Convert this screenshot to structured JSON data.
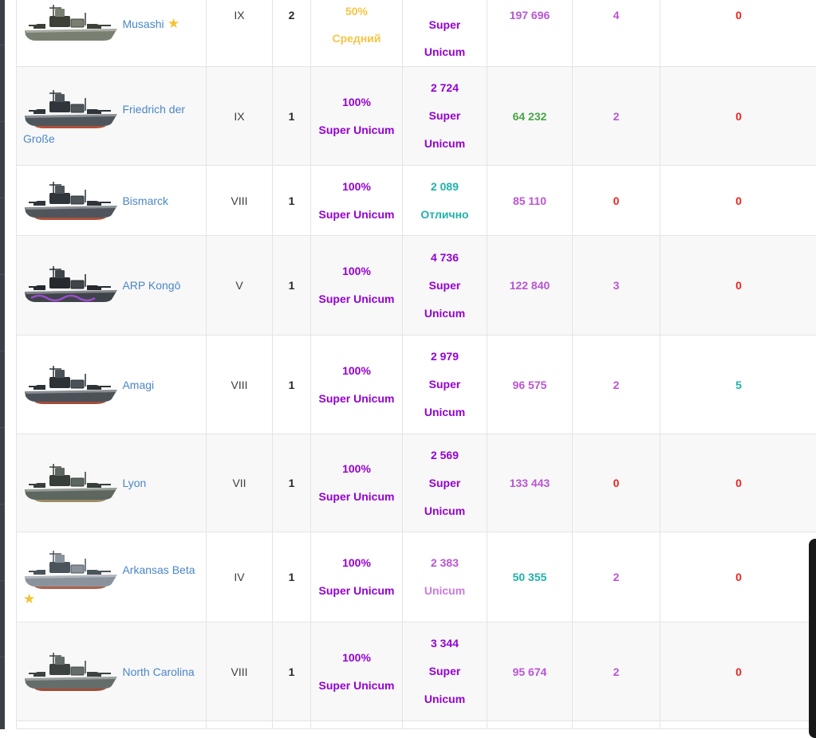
{
  "palette": {
    "purple": "#9400D3",
    "orchid": "#BA55D3",
    "orchidLight": "#C97AE0",
    "green": "#46A546",
    "teal": "#20B2AA",
    "amber": "#F5C544",
    "red": "#EE2222",
    "link": "#4A86C8",
    "gold": "#F2C233",
    "edgeDark": "#3A4046",
    "scrollThumb": "#17181A"
  },
  "icons": {
    "star": "★"
  },
  "table": {
    "rows": [
      {
        "ship": {
          "name": "Musashi",
          "has_star": true,
          "icon_colors": {
            "hull": "#7a8071",
            "dark": "#3c4138",
            "bottom": null,
            "accent": null
          }
        },
        "tier": "IX",
        "battles": "2",
        "winrate": {
          "value": "50%",
          "label": "Средний",
          "color": "amber"
        },
        "rating": {
          "value": "",
          "label_lines": [
            "Super",
            "Unicum"
          ],
          "color": "purple"
        },
        "avg_damage": {
          "value": "197 696",
          "color": "orchid"
        },
        "frags": {
          "value": "4",
          "color": "orchid"
        },
        "planes": {
          "value": "0",
          "color": "red"
        }
      },
      {
        "ship": {
          "name": "Friedrich der Große",
          "has_star": false,
          "icon_colors": {
            "hull": "#4e565c",
            "dark": "#2f353b",
            "bottom": "#b0503a",
            "accent": null
          }
        },
        "tier": "IX",
        "battles": "1",
        "winrate": {
          "value": "100%",
          "label": "Super Unicum",
          "color": "purple"
        },
        "rating": {
          "value": "2 724",
          "label_lines": [
            "Super",
            "Unicum"
          ],
          "color": "purple"
        },
        "avg_damage": {
          "value": "64 232",
          "color": "green"
        },
        "frags": {
          "value": "2",
          "color": "orchid"
        },
        "planes": {
          "value": "0",
          "color": "red"
        }
      },
      {
        "ship": {
          "name": "Bismarck",
          "has_star": false,
          "icon_colors": {
            "hull": "#4e565c",
            "dark": "#2f353b",
            "bottom": "#b0503a",
            "accent": null
          }
        },
        "tier": "VIII",
        "battles": "1",
        "winrate": {
          "value": "100%",
          "label": "Super Unicum",
          "color": "purple"
        },
        "rating": {
          "value": "2 089",
          "label_lines": [
            "Отлично"
          ],
          "color": "teal"
        },
        "avg_damage": {
          "value": "85 110",
          "color": "orchid"
        },
        "frags": {
          "value": "0",
          "color": "red"
        },
        "planes": {
          "value": "0",
          "color": "red"
        }
      },
      {
        "ship": {
          "name": "ARP Kongō",
          "has_star": false,
          "icon_colors": {
            "hull": "#3f444a",
            "dark": "#26292e",
            "bottom": null,
            "accent": "#a64ddb"
          }
        },
        "tier": "V",
        "battles": "1",
        "winrate": {
          "value": "100%",
          "label": "Super Unicum",
          "color": "purple"
        },
        "rating": {
          "value": "4 736",
          "label_lines": [
            "Super",
            "Unicum"
          ],
          "color": "purple"
        },
        "avg_damage": {
          "value": "122 840",
          "color": "orchid"
        },
        "frags": {
          "value": "3",
          "color": "orchid"
        },
        "planes": {
          "value": "0",
          "color": "red"
        }
      },
      {
        "ship": {
          "name": "Amagi",
          "has_star": false,
          "icon_colors": {
            "hull": "#4a5258",
            "dark": "#2d3237",
            "bottom": "#a24c38",
            "accent": null
          }
        },
        "tier": "VIII",
        "battles": "1",
        "winrate": {
          "value": "100%",
          "label": "Super Unicum",
          "color": "purple"
        },
        "rating": {
          "value": "2 979",
          "label_lines": [
            "Super",
            "Unicum"
          ],
          "color": "purple"
        },
        "avg_damage": {
          "value": "96 575",
          "color": "orchid"
        },
        "frags": {
          "value": "2",
          "color": "orchid"
        },
        "planes": {
          "value": "5",
          "color": "teal"
        }
      },
      {
        "ship": {
          "name": "Lyon",
          "has_star": false,
          "icon_colors": {
            "hull": "#5d665f",
            "dark": "#383f3a",
            "bottom": "#9b8a63",
            "accent": null
          }
        },
        "tier": "VII",
        "battles": "1",
        "winrate": {
          "value": "100%",
          "label": "Super Unicum",
          "color": "purple"
        },
        "rating": {
          "value": "2 569",
          "label_lines": [
            "Super",
            "Unicum"
          ],
          "color": "purple"
        },
        "avg_damage": {
          "value": "133 443",
          "color": "orchid"
        },
        "frags": {
          "value": "0",
          "color": "red"
        },
        "planes": {
          "value": "0",
          "color": "red"
        }
      },
      {
        "ship": {
          "name": "Arkansas Beta",
          "has_star": true,
          "icon_colors": {
            "hull": "#8a939b",
            "dark": "#4c545b",
            "bottom": "#b0604a",
            "accent": null
          }
        },
        "tier": "IV",
        "battles": "1",
        "winrate": {
          "value": "100%",
          "label": "Super Unicum",
          "color": "purple"
        },
        "rating": {
          "value": "2 383",
          "label_lines": [
            "Unicum"
          ],
          "color": "orchid",
          "value_color": "orchid",
          "label_color": "orchidLight"
        },
        "avg_damage": {
          "value": "50 355",
          "color": "teal"
        },
        "frags": {
          "value": "2",
          "color": "orchid"
        },
        "planes": {
          "value": "0",
          "color": "red"
        }
      },
      {
        "ship": {
          "name": "North Carolina",
          "has_star": false,
          "icon_colors": {
            "hull": "#656d6a",
            "dark": "#3c4340",
            "bottom": "#a24c38",
            "accent": null
          }
        },
        "tier": "VIII",
        "battles": "1",
        "winrate": {
          "value": "100%",
          "label": "Super Unicum",
          "color": "purple"
        },
        "rating": {
          "value": "3 344",
          "label_lines": [
            "Super",
            "Unicum"
          ],
          "color": "purple"
        },
        "avg_damage": {
          "value": "95 674",
          "color": "orchid"
        },
        "frags": {
          "value": "2",
          "color": "orchid"
        },
        "planes": {
          "value": "0",
          "color": "red"
        }
      }
    ]
  }
}
